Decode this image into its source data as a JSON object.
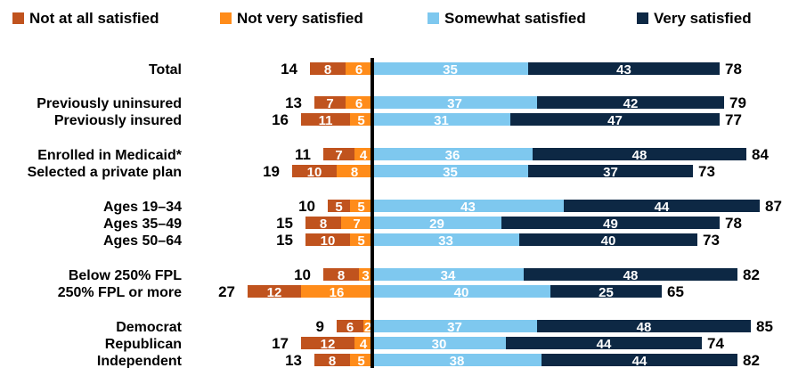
{
  "chart_data": {
    "type": "bar",
    "orientation": "horizontal-diverging",
    "legend_position": "top",
    "series": [
      {
        "name": "Not at all satisfied",
        "color": "#c0531e",
        "side": "negative"
      },
      {
        "name": "Not very satisfied",
        "color": "#ff8c1a",
        "side": "negative"
      },
      {
        "name": "Somewhat satisfied",
        "color": "#7ec8ef",
        "side": "positive"
      },
      {
        "name": "Very satisfied",
        "color": "#0d2844",
        "side": "positive"
      }
    ],
    "rows": [
      {
        "label": "Total",
        "not_at_all": 8,
        "not_very": 6,
        "somewhat": 35,
        "very": 43,
        "neg_total": 14,
        "pos_total": 78
      },
      {
        "label": "Previously uninsured",
        "not_at_all": 7,
        "not_very": 6,
        "somewhat": 37,
        "very": 42,
        "neg_total": 13,
        "pos_total": 79
      },
      {
        "label": "Previously insured",
        "not_at_all": 11,
        "not_very": 5,
        "somewhat": 31,
        "very": 47,
        "neg_total": 16,
        "pos_total": 77
      },
      {
        "label": "Enrolled in Medicaid*",
        "not_at_all": 7,
        "not_very": 4,
        "somewhat": 36,
        "very": 48,
        "neg_total": 11,
        "pos_total": 84
      },
      {
        "label": "Selected a private plan",
        "not_at_all": 10,
        "not_very": 8,
        "somewhat": 35,
        "very": 37,
        "neg_total": 19,
        "pos_total": 73
      },
      {
        "label": "Ages 19–34",
        "not_at_all": 5,
        "not_very": 5,
        "somewhat": 43,
        "very": 44,
        "neg_total": 10,
        "pos_total": 87
      },
      {
        "label": "Ages 35–49",
        "not_at_all": 8,
        "not_very": 7,
        "somewhat": 29,
        "very": 49,
        "neg_total": 15,
        "pos_total": 78
      },
      {
        "label": "Ages 50–64",
        "not_at_all": 10,
        "not_very": 5,
        "somewhat": 33,
        "very": 40,
        "neg_total": 15,
        "pos_total": 73
      },
      {
        "label": "Below 250% FPL",
        "not_at_all": 8,
        "not_very": 3,
        "somewhat": 34,
        "very": 48,
        "neg_total": 10,
        "pos_total": 82
      },
      {
        "label": "250% FPL or more",
        "not_at_all": 12,
        "not_very": 16,
        "somewhat": 40,
        "very": 25,
        "neg_total": 27,
        "pos_total": 65
      },
      {
        "label": "Democrat",
        "not_at_all": 6,
        "not_very": 2,
        "somewhat": 37,
        "very": 48,
        "neg_total": 9,
        "pos_total": 85
      },
      {
        "label": "Republican",
        "not_at_all": 12,
        "not_very": 4,
        "somewhat": 30,
        "very": 44,
        "neg_total": 17,
        "pos_total": 74
      },
      {
        "label": "Independent",
        "not_at_all": 8,
        "not_very": 5,
        "somewhat": 38,
        "very": 44,
        "neg_total": 13,
        "pos_total": 82
      }
    ]
  }
}
